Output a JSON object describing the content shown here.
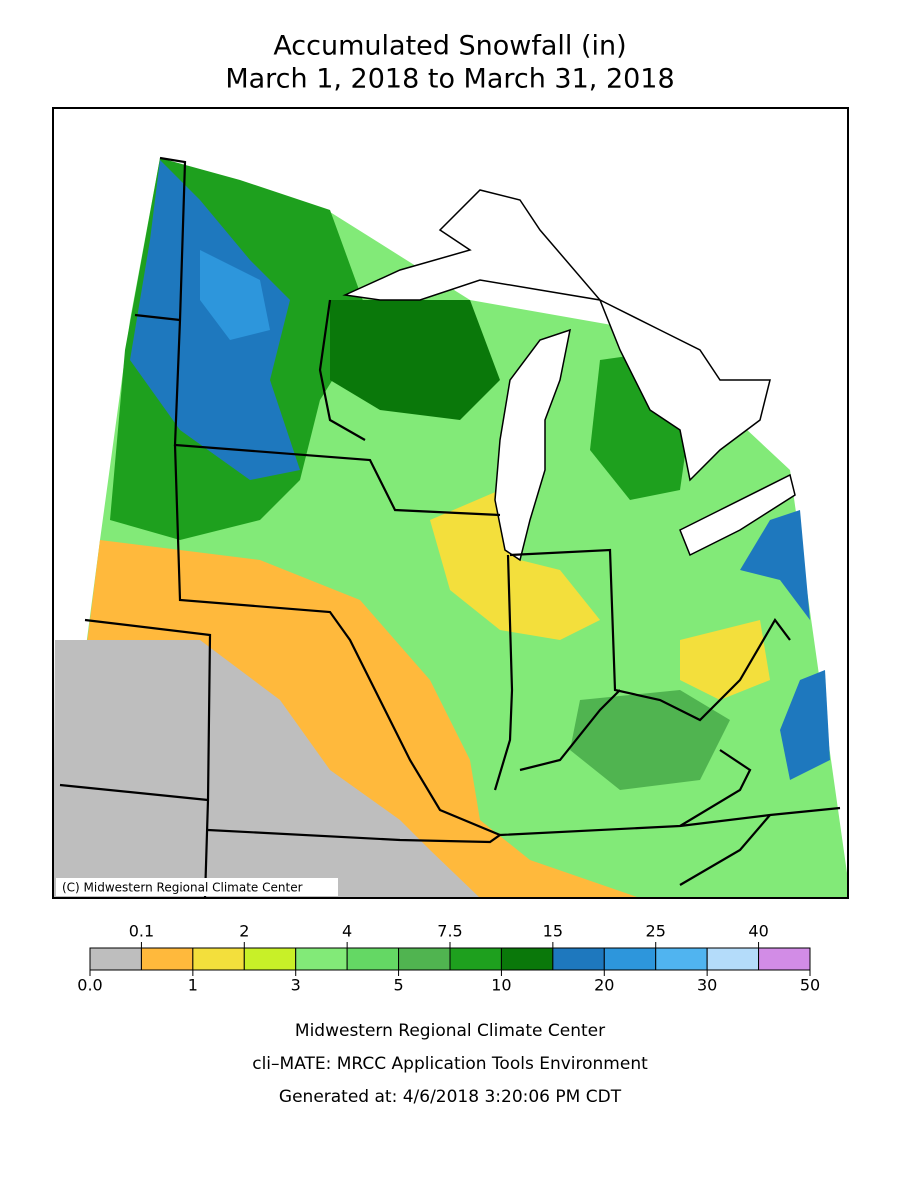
{
  "title": [
    "Accumulated Snowfall (in)",
    "March 1, 2018 to March 31, 2018"
  ],
  "credit": "(C) Midwestern Regional Climate Center",
  "legend": {
    "bounds": [
      {
        "value": 0,
        "label": "0.0"
      },
      0.1,
      1,
      2,
      3,
      4,
      5,
      7.5,
      10,
      15,
      20,
      25,
      30,
      40,
      50
    ],
    "colors": [
      "#bebebe",
      "#ffb93c",
      "#f3df3c",
      "#c8f028",
      "#82ea78",
      "#64d864",
      "#50b450",
      "#1ea01e",
      "#0a780a",
      "#1e78be",
      "#2d96dc",
      "#50b4f0",
      "#b4dcfa",
      "#d28ce6"
    ]
  },
  "footer": [
    "Midwestern Regional Climate Center",
    "cli–MATE: MRCC Application Tools Environment",
    "Generated at: 4/6/2018 3:20:06 PM CDT"
  ]
}
